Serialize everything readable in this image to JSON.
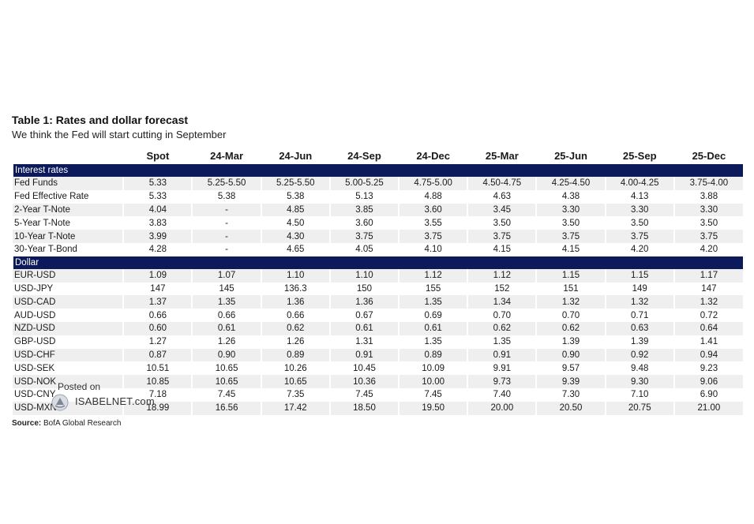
{
  "title": "Table 1: Rates and dollar forecast",
  "subtitle": "We think the Fed will start cutting in September",
  "columns": [
    "",
    "Spot",
    "24-Mar",
    "24-Jun",
    "24-Sep",
    "24-Dec",
    "25-Mar",
    "25-Jun",
    "25-Sep",
    "25-Dec"
  ],
  "sections": [
    {
      "name": "Interest rates",
      "rows": [
        {
          "label": "Fed Funds",
          "values": [
            "5.33",
            "5.25-5.50",
            "5.25-5.50",
            "5.00-5.25",
            "4.75-5.00",
            "4.50-4.75",
            "4.25-4.50",
            "4.00-4.25",
            "3.75-4.00"
          ]
        },
        {
          "label": "Fed Effective Rate",
          "values": [
            "5.33",
            "5.38",
            "5.38",
            "5.13",
            "4.88",
            "4.63",
            "4.38",
            "4.13",
            "3.88"
          ]
        },
        {
          "label": "2-Year T-Note",
          "values": [
            "4.04",
            "-",
            "4.85",
            "3.85",
            "3.60",
            "3.45",
            "3.30",
            "3.30",
            "3.30"
          ]
        },
        {
          "label": "5-Year T-Note",
          "values": [
            "3.83",
            "-",
            "4.50",
            "3.60",
            "3.55",
            "3.50",
            "3.50",
            "3.50",
            "3.50"
          ]
        },
        {
          "label": "10-Year T-Note",
          "values": [
            "3.99",
            "-",
            "4.30",
            "3.75",
            "3.75",
            "3.75",
            "3.75",
            "3.75",
            "3.75"
          ]
        },
        {
          "label": "30-Year T-Bond",
          "values": [
            "4.28",
            "-",
            "4.65",
            "4.05",
            "4.10",
            "4.15",
            "4.15",
            "4.20",
            "4.20"
          ]
        }
      ]
    },
    {
      "name": "Dollar",
      "rows": [
        {
          "label": "EUR-USD",
          "values": [
            "1.09",
            "1.07",
            "1.10",
            "1.10",
            "1.12",
            "1.12",
            "1.15",
            "1.15",
            "1.17"
          ]
        },
        {
          "label": "USD-JPY",
          "values": [
            "147",
            "145",
            "136.3",
            "150",
            "155",
            "152",
            "151",
            "149",
            "147"
          ]
        },
        {
          "label": "USD-CAD",
          "values": [
            "1.37",
            "1.35",
            "1.36",
            "1.36",
            "1.35",
            "1.34",
            "1.32",
            "1.32",
            "1.32"
          ]
        },
        {
          "label": "AUD-USD",
          "values": [
            "0.66",
            "0.66",
            "0.66",
            "0.67",
            "0.69",
            "0.70",
            "0.70",
            "0.71",
            "0.72"
          ]
        },
        {
          "label": "NZD-USD",
          "values": [
            "0.60",
            "0.61",
            "0.62",
            "0.61",
            "0.61",
            "0.62",
            "0.62",
            "0.63",
            "0.64"
          ]
        },
        {
          "label": "GBP-USD",
          "values": [
            "1.27",
            "1.26",
            "1.26",
            "1.31",
            "1.35",
            "1.35",
            "1.39",
            "1.39",
            "1.41"
          ]
        },
        {
          "label": "USD-CHF",
          "values": [
            "0.87",
            "0.90",
            "0.89",
            "0.91",
            "0.89",
            "0.91",
            "0.90",
            "0.92",
            "0.94"
          ]
        },
        {
          "label": "USD-SEK",
          "values": [
            "10.51",
            "10.65",
            "10.26",
            "10.45",
            "10.09",
            "9.91",
            "9.57",
            "9.48",
            "9.23"
          ]
        },
        {
          "label": "USD-NOK",
          "values": [
            "10.85",
            "10.65",
            "10.65",
            "10.36",
            "10.00",
            "9.73",
            "9.39",
            "9.30",
            "9.06"
          ]
        },
        {
          "label": "USD-CNY",
          "values": [
            "7.18",
            "7.45",
            "7.35",
            "7.45",
            "7.45",
            "7.40",
            "7.30",
            "7.10",
            "6.90"
          ]
        },
        {
          "label": "USD-MXN",
          "values": [
            "18.99",
            "16.56",
            "17.42",
            "18.50",
            "19.50",
            "20.00",
            "20.50",
            "20.75",
            "21.00"
          ]
        }
      ]
    }
  ],
  "source": {
    "label": "Source:",
    "text": " BofA Global Research"
  },
  "watermark": {
    "posted": "Posted on",
    "brand": "ISABELNET.com",
    "icon": "isabelnet-logo-icon"
  },
  "colors": {
    "section_bg": "#0c1a5c",
    "stripe": "#efefef"
  }
}
